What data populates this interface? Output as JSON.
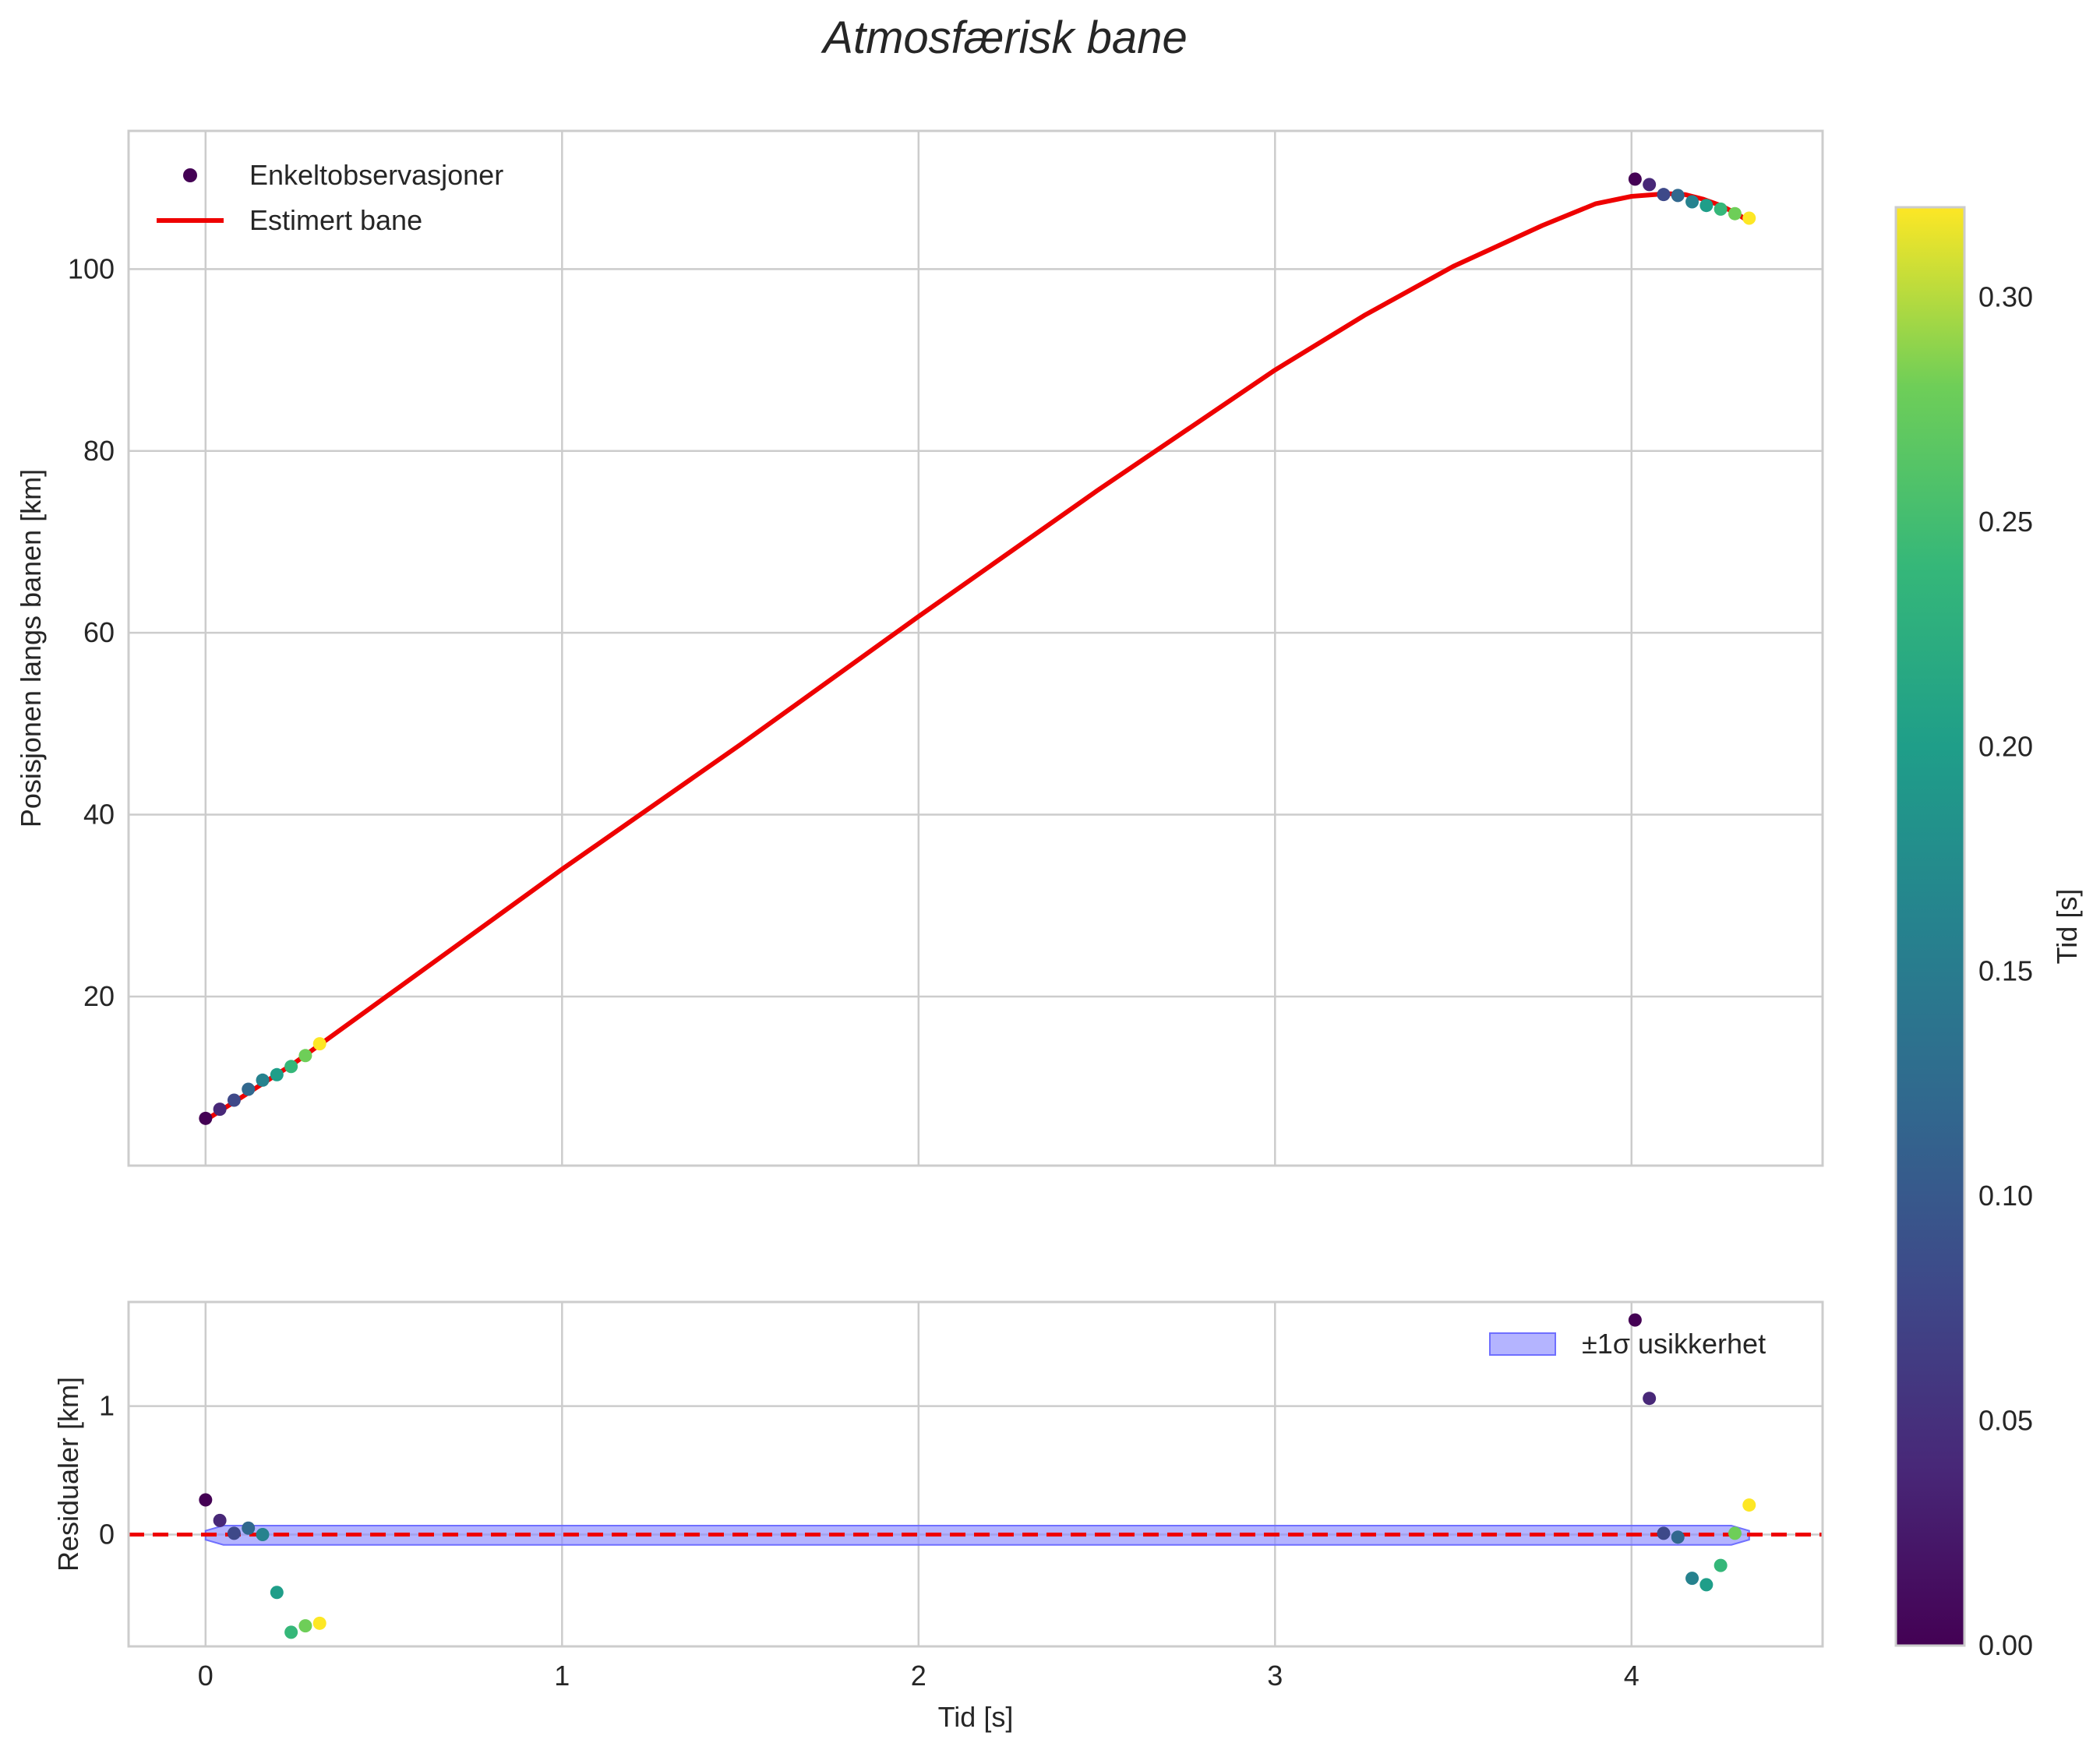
{
  "chart_data": {
    "type": "scatter",
    "title": "Atmosfærisk bane",
    "top": {
      "ylabel": "Posisjonen langs banen [km]",
      "xlim": [
        -0.216,
        4.536
      ],
      "ylim": [
        1.4,
        115.2
      ],
      "xticks": [
        0,
        1,
        2,
        3,
        4
      ],
      "yticks": [
        20,
        40,
        60,
        80,
        100
      ],
      "ytick_labels": [
        "20",
        "40",
        "60",
        "80",
        "100"
      ],
      "grid": true,
      "legend": {
        "position": "top-left",
        "entries": [
          {
            "label": "Enkeltobservasjoner",
            "kind": "marker",
            "color": "#440154"
          },
          {
            "label": "Estimert bane",
            "kind": "line",
            "color": "#ee0000"
          }
        ]
      },
      "observations": [
        {
          "t": 0.0,
          "y": 6.6,
          "c": 0.0
        },
        {
          "t": 0.04,
          "y": 7.6,
          "c": 0.04
        },
        {
          "t": 0.08,
          "y": 8.6,
          "c": 0.08
        },
        {
          "t": 0.12,
          "y": 9.8,
          "c": 0.12
        },
        {
          "t": 0.16,
          "y": 10.8,
          "c": 0.16
        },
        {
          "t": 0.2,
          "y": 11.4,
          "c": 0.2
        },
        {
          "t": 0.24,
          "y": 12.3,
          "c": 0.24
        },
        {
          "t": 0.28,
          "y": 13.5,
          "c": 0.28
        },
        {
          "t": 0.32,
          "y": 14.8,
          "c": 0.32
        },
        {
          "t": 4.01,
          "y": 109.9,
          "c": 0.0
        },
        {
          "t": 4.05,
          "y": 109.3,
          "c": 0.04
        },
        {
          "t": 4.09,
          "y": 108.2,
          "c": 0.08
        },
        {
          "t": 4.13,
          "y": 108.1,
          "c": 0.12
        },
        {
          "t": 4.17,
          "y": 107.4,
          "c": 0.16
        },
        {
          "t": 4.21,
          "y": 107.0,
          "c": 0.2
        },
        {
          "t": 4.25,
          "y": 106.6,
          "c": 0.24
        },
        {
          "t": 4.29,
          "y": 106.1,
          "c": 0.28
        },
        {
          "t": 4.33,
          "y": 105.6,
          "c": 0.32
        }
      ],
      "estimated_path": [
        [
          0.0,
          6.4
        ],
        [
          0.1,
          8.9
        ],
        [
          0.25,
          12.7
        ],
        [
          0.5,
          19.8
        ],
        [
          1.0,
          34.0
        ],
        [
          1.5,
          47.7
        ],
        [
          2.0,
          61.8
        ],
        [
          2.5,
          75.6
        ],
        [
          3.0,
          88.9
        ],
        [
          3.25,
          94.9
        ],
        [
          3.5,
          100.3
        ],
        [
          3.75,
          104.8
        ],
        [
          3.9,
          107.2
        ],
        [
          4.0,
          108.0
        ],
        [
          4.1,
          108.3
        ],
        [
          4.15,
          108.2
        ],
        [
          4.2,
          107.7
        ],
        [
          4.25,
          107.0
        ],
        [
          4.3,
          106.0
        ],
        [
          4.33,
          105.2
        ]
      ]
    },
    "bottom": {
      "xlabel": "Tid [s]",
      "ylabel": "Residualer [km]",
      "xlim": [
        -0.216,
        4.536
      ],
      "ylim": [
        -0.87,
        1.81
      ],
      "xticks": [
        0,
        1,
        2,
        3,
        4
      ],
      "xtick_labels": [
        "0",
        "1",
        "2",
        "3",
        "4"
      ],
      "yticks": [
        0,
        1
      ],
      "ytick_labels": [
        "0",
        "1"
      ],
      "grid": true,
      "zero_line": {
        "y": 0,
        "color": "#ee0000",
        "style": "dashed"
      },
      "band": {
        "label": "±1σ usikkerhet",
        "color": "#8c8cff",
        "points": [
          [
            0.0,
            0.03,
            -0.04
          ],
          [
            0.05,
            0.07,
            -0.08
          ],
          [
            0.3,
            0.07,
            -0.08
          ],
          [
            4.05,
            0.07,
            -0.08
          ],
          [
            4.28,
            0.07,
            -0.08
          ],
          [
            4.33,
            0.03,
            -0.04
          ]
        ]
      },
      "legend": {
        "position": "top-right"
      },
      "residuals": [
        {
          "t": 0.0,
          "r": 0.27,
          "c": 0.0
        },
        {
          "t": 0.04,
          "r": 0.11,
          "c": 0.04
        },
        {
          "t": 0.08,
          "r": 0.01,
          "c": 0.08
        },
        {
          "t": 0.12,
          "r": 0.05,
          "c": 0.12
        },
        {
          "t": 0.16,
          "r": 0.0,
          "c": 0.16
        },
        {
          "t": 0.2,
          "r": -0.45,
          "c": 0.2
        },
        {
          "t": 0.24,
          "r": -0.76,
          "c": 0.24
        },
        {
          "t": 0.28,
          "r": -0.71,
          "c": 0.28
        },
        {
          "t": 0.32,
          "r": -0.69,
          "c": 0.32
        },
        {
          "t": 4.01,
          "r": 1.67,
          "c": 0.0
        },
        {
          "t": 4.05,
          "r": 1.06,
          "c": 0.04
        },
        {
          "t": 4.09,
          "r": 0.01,
          "c": 0.08
        },
        {
          "t": 4.13,
          "r": -0.02,
          "c": 0.12
        },
        {
          "t": 4.17,
          "r": -0.34,
          "c": 0.16
        },
        {
          "t": 4.21,
          "r": -0.39,
          "c": 0.2
        },
        {
          "t": 4.25,
          "r": -0.24,
          "c": 0.24
        },
        {
          "t": 4.29,
          "r": 0.01,
          "c": 0.28
        },
        {
          "t": 4.33,
          "r": 0.23,
          "c": 0.32
        }
      ]
    },
    "colorbar": {
      "label": "Tid [s]",
      "colormap": "viridis",
      "range": [
        0.0,
        0.32
      ],
      "ticks": [
        0.0,
        0.05,
        0.1,
        0.15,
        0.2,
        0.25,
        0.3
      ],
      "tick_labels": [
        "0.00",
        "0.05",
        "0.10",
        "0.15",
        "0.20",
        "0.25",
        "0.30"
      ]
    }
  }
}
